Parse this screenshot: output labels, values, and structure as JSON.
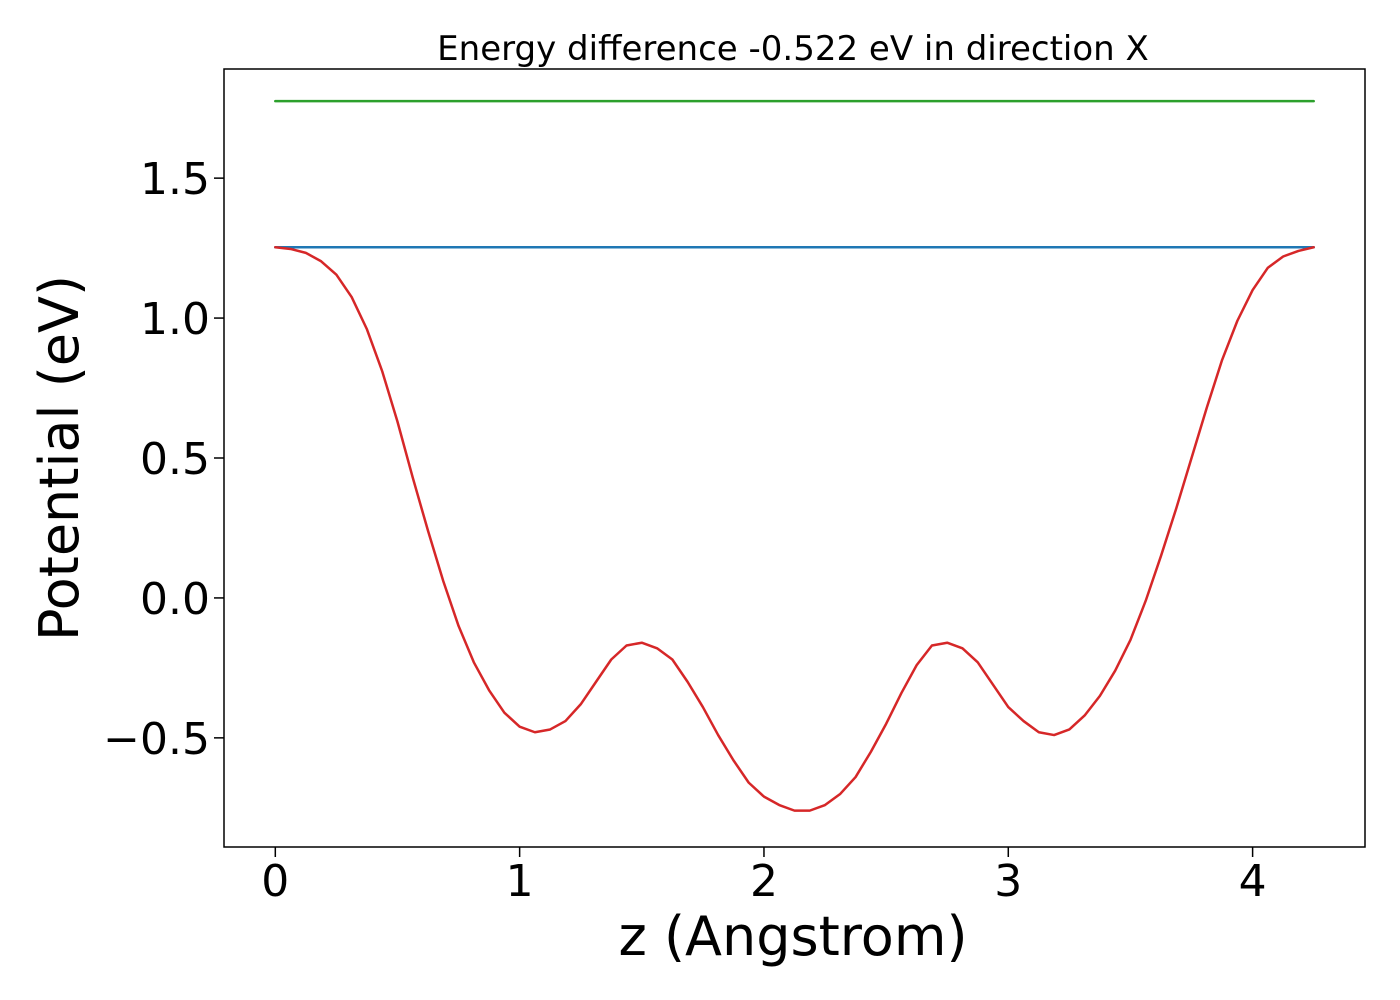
{
  "chart_data": {
    "type": "line",
    "title": "Energy difference -0.522 eV in direction X",
    "xlabel": "z (Angstrom)",
    "ylabel": "Potential (eV)",
    "xlim": [
      -0.21,
      4.46
    ],
    "ylim": [
      -0.89,
      1.89
    ],
    "xticks": [
      0,
      1,
      2,
      3,
      4
    ],
    "xtick_labels": [
      "0",
      "1",
      "2",
      "3",
      "4"
    ],
    "yticks": [
      -0.5,
      0.0,
      0.5,
      1.0,
      1.5
    ],
    "ytick_labels": [
      "−0.5",
      "0.0",
      "0.5",
      "1.0",
      "1.5"
    ],
    "grid": false,
    "legend": "none",
    "series": [
      {
        "color": "#2ca02c",
        "x": [
          0,
          4.25
        ],
        "y": [
          1.775,
          1.775
        ]
      },
      {
        "color": "#1f77b4",
        "x": [
          0,
          4.25
        ],
        "y": [
          1.253,
          1.253
        ]
      },
      {
        "color": "#d62728",
        "x": [
          0.0,
          0.0625,
          0.125,
          0.1875,
          0.25,
          0.3125,
          0.375,
          0.4375,
          0.5,
          0.5625,
          0.625,
          0.6875,
          0.75,
          0.8125,
          0.875,
          0.9375,
          1.0,
          1.0625,
          1.125,
          1.1875,
          1.25,
          1.3125,
          1.375,
          1.4375,
          1.5,
          1.5625,
          1.625,
          1.6875,
          1.75,
          1.8125,
          1.875,
          1.9375,
          2.0,
          2.0625,
          2.125,
          2.1875,
          2.25,
          2.3125,
          2.375,
          2.4375,
          2.5,
          2.5625,
          2.625,
          2.6875,
          2.75,
          2.8125,
          2.875,
          2.9375,
          3.0,
          3.0625,
          3.125,
          3.1875,
          3.25,
          3.3125,
          3.375,
          3.4375,
          3.5,
          3.5625,
          3.625,
          3.6875,
          3.75,
          3.8125,
          3.875,
          3.9375,
          4.0,
          4.0625,
          4.125,
          4.1875,
          4.25
        ],
        "y": [
          1.253,
          1.247,
          1.233,
          1.203,
          1.155,
          1.075,
          0.96,
          0.81,
          0.63,
          0.43,
          0.24,
          0.06,
          -0.1,
          -0.23,
          -0.33,
          -0.41,
          -0.46,
          -0.48,
          -0.47,
          -0.44,
          -0.38,
          -0.3,
          -0.22,
          -0.17,
          -0.16,
          -0.18,
          -0.22,
          -0.3,
          -0.39,
          -0.49,
          -0.58,
          -0.66,
          -0.71,
          -0.74,
          -0.76,
          -0.76,
          -0.74,
          -0.7,
          -0.64,
          -0.55,
          -0.45,
          -0.34,
          -0.24,
          -0.17,
          -0.16,
          -0.18,
          -0.23,
          -0.31,
          -0.39,
          -0.44,
          -0.48,
          -0.49,
          -0.47,
          -0.42,
          -0.35,
          -0.26,
          -0.15,
          -0.01,
          0.15,
          0.32,
          0.5,
          0.68,
          0.85,
          0.99,
          1.1,
          1.18,
          1.22,
          1.24,
          1.253
        ]
      }
    ]
  }
}
